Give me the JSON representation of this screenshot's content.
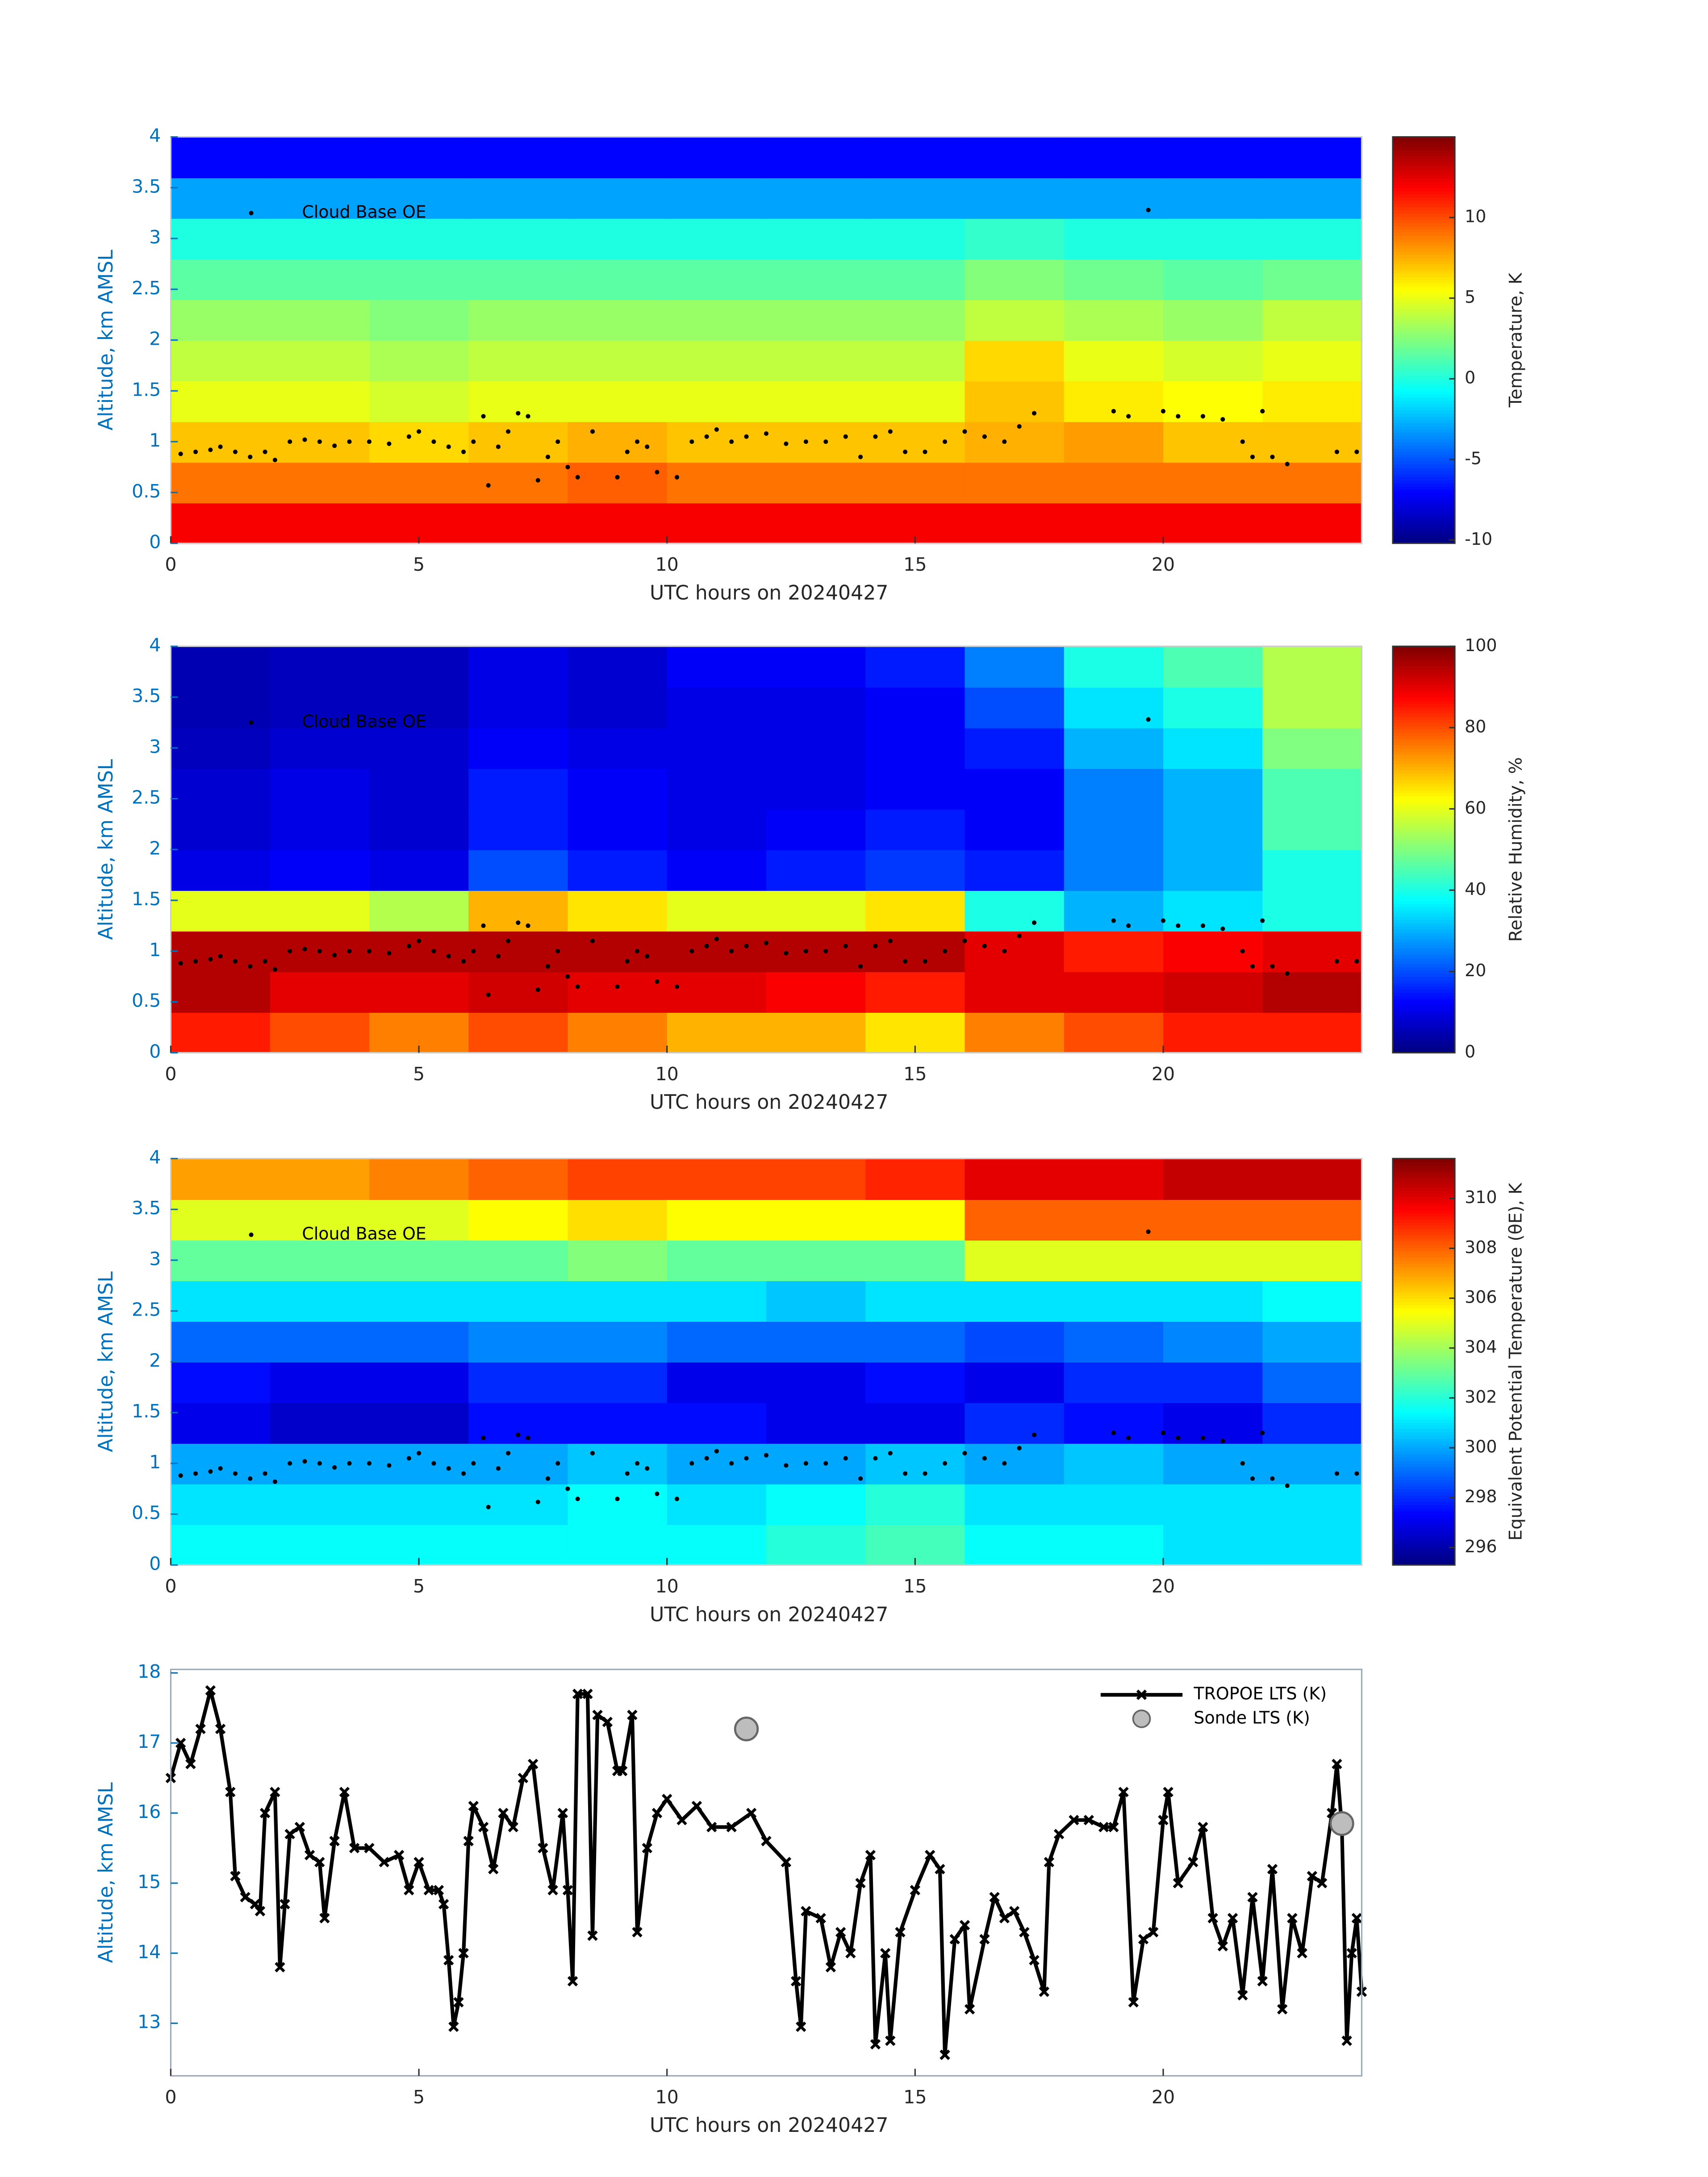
{
  "chart_data": [
    {
      "type": "heatmap",
      "colormap": "jet",
      "x_label": "UTC hours on 20240427",
      "y_label": "Altitude, km AMSL",
      "colorbar_label": "Temperature, K",
      "xlim": [
        0,
        24
      ],
      "xticks": [
        0,
        5,
        10,
        15,
        20
      ],
      "ylim": [
        0,
        4
      ],
      "yticks": [
        0,
        0.5,
        1,
        1.5,
        2,
        2.5,
        3,
        3.5,
        4
      ],
      "clim": [
        -10.2,
        15
      ],
      "cticks": [
        -10,
        -5,
        0,
        5,
        10
      ],
      "x": [
        1,
        3,
        5,
        7,
        9,
        11,
        13,
        15,
        17,
        19,
        21,
        23
      ],
      "y": [
        0.2,
        0.6,
        1.0,
        1.4,
        1.8,
        2.2,
        2.6,
        3.0,
        3.4,
        3.8
      ],
      "z": [
        [
          12,
          12,
          12,
          12,
          12,
          12,
          12,
          12,
          12,
          12,
          12,
          12
        ],
        [
          9,
          9,
          9,
          9,
          9.5,
          9,
          9,
          9,
          9,
          9,
          9,
          9
        ],
        [
          7,
          7,
          6.5,
          7,
          7.5,
          7,
          7,
          7,
          7.5,
          8,
          7,
          7
        ],
        [
          5,
          5,
          4.5,
          5,
          5,
          5,
          5,
          5,
          7,
          6,
          5.5,
          6
        ],
        [
          4,
          4,
          3.5,
          4,
          4,
          4,
          4,
          4,
          6.5,
          5,
          4.5,
          5
        ],
        [
          3,
          3,
          2.5,
          3,
          3,
          3,
          3,
          3,
          4,
          3.5,
          3,
          4
        ],
        [
          1.5,
          1.5,
          1.5,
          1.5,
          1.5,
          1.5,
          1.5,
          1.5,
          2.5,
          2,
          1.5,
          2
        ],
        [
          0,
          0,
          0,
          0,
          0,
          0,
          0,
          0,
          0.5,
          0,
          0,
          0
        ],
        [
          -3,
          -3,
          -3,
          -3,
          -3,
          -3,
          -3,
          -3,
          -3,
          -3,
          -3,
          -3
        ],
        [
          -7,
          -7,
          -7,
          -7,
          -7,
          -7,
          -7,
          -7,
          -7,
          -7,
          -7,
          -7
        ]
      ],
      "cloud_base": {
        "name": "Cloud Base OE",
        "color": "#000000",
        "x": [
          0.2,
          0.5,
          0.8,
          1.0,
          1.3,
          1.6,
          1.9,
          2.1,
          2.4,
          2.7,
          3.0,
          3.3,
          3.6,
          4.0,
          4.4,
          4.8,
          5.0,
          5.3,
          5.6,
          5.9,
          6.1,
          6.3,
          6.4,
          6.6,
          6.8,
          7.0,
          7.2,
          7.4,
          7.6,
          7.8,
          8.0,
          8.2,
          8.5,
          9.0,
          9.2,
          9.4,
          9.6,
          9.8,
          10.2,
          10.5,
          10.8,
          11.0,
          11.3,
          11.6,
          12.0,
          12.4,
          12.8,
          13.2,
          13.6,
          13.9,
          14.2,
          14.5,
          14.8,
          15.2,
          15.6,
          16.0,
          16.4,
          16.8,
          17.1,
          17.4,
          19.0,
          19.3,
          19.7,
          20.0,
          20.3,
          20.8,
          21.2,
          21.6,
          21.8,
          22.0,
          22.2,
          22.5,
          23.5,
          23.9
        ],
        "values": [
          0.88,
          0.9,
          0.92,
          0.95,
          0.9,
          0.85,
          0.9,
          0.82,
          1.0,
          1.02,
          1.0,
          0.96,
          1.0,
          1.0,
          0.98,
          1.05,
          1.1,
          1.0,
          0.95,
          0.9,
          1.0,
          1.25,
          0.57,
          0.95,
          1.1,
          1.28,
          1.25,
          0.62,
          0.85,
          1.0,
          0.75,
          0.65,
          1.1,
          0.65,
          0.9,
          1.0,
          0.95,
          0.7,
          0.65,
          1.0,
          1.05,
          1.12,
          1.0,
          1.05,
          1.08,
          0.98,
          1.0,
          1.0,
          1.05,
          0.85,
          1.05,
          1.1,
          0.9,
          0.9,
          1.0,
          1.1,
          1.05,
          1.0,
          1.15,
          1.28,
          1.3,
          1.25,
          3.28,
          1.3,
          1.25,
          1.25,
          1.22,
          1.0,
          0.85,
          1.3,
          0.85,
          0.78,
          0.9,
          0.9
        ]
      }
    },
    {
      "type": "heatmap",
      "colormap": "jet",
      "x_label": "UTC hours on 20240427",
      "y_label": "Altitude, km AMSL",
      "colorbar_label": "Relative Humidity, %",
      "xlim": [
        0,
        24
      ],
      "xticks": [
        0,
        5,
        10,
        15,
        20
      ],
      "ylim": [
        0,
        4
      ],
      "yticks": [
        0,
        0.5,
        1,
        1.5,
        2,
        2.5,
        3,
        3.5,
        4
      ],
      "clim": [
        0,
        100
      ],
      "cticks": [
        0,
        20,
        40,
        60,
        80,
        100
      ],
      "x": [
        1,
        3,
        5,
        7,
        9,
        11,
        13,
        15,
        17,
        19,
        21,
        23
      ],
      "y": [
        0.2,
        0.6,
        1.0,
        1.4,
        1.8,
        2.2,
        2.6,
        3.0,
        3.4,
        3.8
      ],
      "z": [
        [
          85,
          80,
          75,
          80,
          75,
          70,
          70,
          65,
          75,
          80,
          85,
          85
        ],
        [
          95,
          90,
          90,
          92,
          90,
          90,
          88,
          85,
          90,
          90,
          92,
          95
        ],
        [
          95,
          95,
          95,
          95,
          95,
          95,
          95,
          95,
          90,
          85,
          88,
          90
        ],
        [
          60,
          60,
          55,
          70,
          65,
          60,
          60,
          65,
          40,
          30,
          35,
          40
        ],
        [
          10,
          12,
          10,
          20,
          15,
          12,
          15,
          18,
          15,
          25,
          30,
          40
        ],
        [
          8,
          10,
          8,
          15,
          12,
          10,
          12,
          15,
          12,
          25,
          30,
          45
        ],
        [
          8,
          10,
          8,
          15,
          12,
          10,
          10,
          12,
          12,
          25,
          30,
          45
        ],
        [
          6,
          8,
          8,
          12,
          10,
          10,
          10,
          12,
          15,
          30,
          35,
          50
        ],
        [
          5,
          6,
          6,
          10,
          8,
          10,
          10,
          12,
          20,
          35,
          40,
          55
        ],
        [
          5,
          6,
          6,
          10,
          8,
          12,
          12,
          15,
          25,
          40,
          45,
          55
        ]
      ]
    },
    {
      "type": "heatmap",
      "colormap": "jet",
      "x_label": "UTC hours on 20240427",
      "y_label": "Altitude, km AMSL",
      "colorbar_label": "Equivalent Potential Temperature (θE), K",
      "xlim": [
        0,
        24
      ],
      "xticks": [
        0,
        5,
        10,
        15,
        20
      ],
      "ylim": [
        0,
        4
      ],
      "yticks": [
        0,
        0.5,
        1,
        1.5,
        2,
        2.5,
        3,
        3.5,
        4
      ],
      "clim": [
        295.3,
        311.6
      ],
      "cticks": [
        296,
        298,
        300,
        302,
        304,
        306,
        308,
        310
      ],
      "x": [
        1,
        3,
        5,
        7,
        9,
        11,
        13,
        15,
        17,
        19,
        21,
        23
      ],
      "y": [
        0.2,
        0.6,
        1.0,
        1.4,
        1.8,
        2.2,
        2.6,
        3.0,
        3.4,
        3.8
      ],
      "z": [
        [
          301.5,
          301.5,
          301.5,
          301.5,
          301.5,
          301.5,
          302,
          302.5,
          301.5,
          301.5,
          301,
          301
        ],
        [
          301,
          301,
          301,
          301,
          301.5,
          301,
          301.5,
          302,
          301,
          301,
          301,
          301
        ],
        [
          300,
          300,
          300,
          300,
          300.5,
          300,
          300,
          300.5,
          300,
          300.5,
          300,
          300
        ],
        [
          297,
          296.5,
          296.5,
          297.5,
          297.5,
          297.5,
          297,
          297,
          298,
          297.5,
          297,
          298
        ],
        [
          297.5,
          297,
          297,
          298,
          298,
          297,
          297,
          297.5,
          297,
          298,
          298,
          299
        ],
        [
          299,
          299,
          299,
          299.5,
          299.5,
          299,
          299,
          299,
          298.5,
          299,
          299.5,
          300
        ],
        [
          301,
          301,
          301,
          301,
          301,
          301,
          300.5,
          301,
          301,
          301,
          301,
          301.5
        ],
        [
          303,
          303,
          303,
          303,
          303.5,
          303,
          303,
          303,
          305,
          305,
          305,
          305
        ],
        [
          305,
          305,
          305,
          305.5,
          306,
          305.5,
          305.5,
          305.5,
          308,
          308,
          308,
          308
        ],
        [
          307,
          307,
          307.5,
          308,
          308.5,
          308.5,
          308.5,
          309,
          310,
          310,
          310.5,
          310.5
        ]
      ]
    },
    {
      "type": "line",
      "x_label": "UTC hours on 20240427",
      "y_label": "Altitude, km AMSL",
      "xlim": [
        0,
        24
      ],
      "xticks": [
        0,
        5,
        10,
        15,
        20
      ],
      "ylim": [
        12.25,
        18.05
      ],
      "yticks": [
        13,
        14,
        15,
        16,
        17,
        18
      ],
      "legend": "upper right",
      "series": [
        {
          "name": "TROPOE LTS (K)",
          "color": "#000000",
          "marker": "x",
          "x": [
            0,
            0.2,
            0.4,
            0.6,
            0.8,
            1.0,
            1.2,
            1.3,
            1.5,
            1.7,
            1.8,
            1.9,
            2.1,
            2.2,
            2.3,
            2.4,
            2.6,
            2.8,
            3.0,
            3.1,
            3.3,
            3.5,
            3.7,
            4.0,
            4.3,
            4.6,
            4.8,
            5.0,
            5.2,
            5.4,
            5.5,
            5.6,
            5.7,
            5.8,
            5.9,
            6.0,
            6.1,
            6.3,
            6.5,
            6.7,
            6.9,
            7.1,
            7.3,
            7.5,
            7.7,
            7.9,
            8.0,
            8.1,
            8.2,
            8.4,
            8.5,
            8.6,
            8.8,
            9.0,
            9.1,
            9.3,
            9.4,
            9.6,
            9.8,
            10.0,
            10.3,
            10.6,
            10.9,
            11.3,
            11.7,
            12.0,
            12.4,
            12.6,
            12.7,
            12.8,
            13.1,
            13.3,
            13.5,
            13.7,
            13.9,
            14.1,
            14.2,
            14.4,
            14.5,
            14.7,
            15.0,
            15.3,
            15.5,
            15.6,
            15.8,
            16.0,
            16.1,
            16.4,
            16.6,
            16.8,
            17.0,
            17.2,
            17.4,
            17.6,
            17.7,
            17.9,
            18.2,
            18.5,
            18.8,
            19.0,
            19.2,
            19.4,
            19.6,
            19.8,
            20.0,
            20.1,
            20.3,
            20.6,
            20.8,
            21.0,
            21.2,
            21.4,
            21.6,
            21.8,
            22.0,
            22.2,
            22.4,
            22.6,
            22.8,
            23.0,
            23.2,
            23.4,
            23.5,
            23.6,
            23.7,
            23.8,
            23.9,
            24.0
          ],
          "values": [
            16.5,
            17.0,
            16.7,
            17.2,
            17.75,
            17.2,
            16.3,
            15.1,
            14.8,
            14.7,
            14.6,
            16.0,
            16.3,
            13.8,
            14.7,
            15.7,
            15.8,
            15.4,
            15.3,
            14.5,
            15.6,
            16.3,
            15.5,
            15.5,
            15.3,
            15.4,
            14.9,
            15.3,
            14.9,
            14.9,
            14.7,
            13.9,
            12.95,
            13.3,
            14.0,
            15.6,
            16.1,
            15.8,
            15.2,
            16.0,
            15.8,
            16.5,
            16.7,
            15.5,
            14.9,
            16.0,
            14.9,
            13.6,
            17.7,
            17.7,
            14.25,
            17.4,
            17.3,
            16.6,
            16.6,
            17.4,
            14.3,
            15.5,
            16.0,
            16.2,
            15.9,
            16.1,
            15.8,
            15.8,
            16.0,
            15.6,
            15.3,
            13.6,
            12.95,
            14.6,
            14.5,
            13.8,
            14.3,
            14.0,
            15.0,
            15.4,
            12.7,
            14.0,
            12.75,
            14.3,
            14.9,
            15.4,
            15.2,
            12.55,
            14.2,
            14.4,
            13.2,
            14.2,
            14.8,
            14.5,
            14.6,
            14.3,
            13.9,
            13.45,
            15.3,
            15.7,
            15.9,
            15.9,
            15.8,
            15.8,
            16.3,
            13.3,
            14.2,
            14.3,
            15.9,
            16.3,
            15.0,
            15.3,
            15.8,
            14.5,
            14.1,
            14.5,
            13.4,
            14.8,
            13.6,
            15.2,
            13.2,
            14.5,
            14.0,
            15.1,
            15.0,
            16.0,
            16.7,
            15.8,
            12.75,
            14.0,
            14.5,
            13.45
          ]
        },
        {
          "name": "Sonde LTS (K)",
          "color": "#bdbdbd",
          "marker": "o",
          "x": [
            11.6,
            23.6
          ],
          "values": [
            17.2,
            15.85
          ]
        }
      ]
    }
  ]
}
